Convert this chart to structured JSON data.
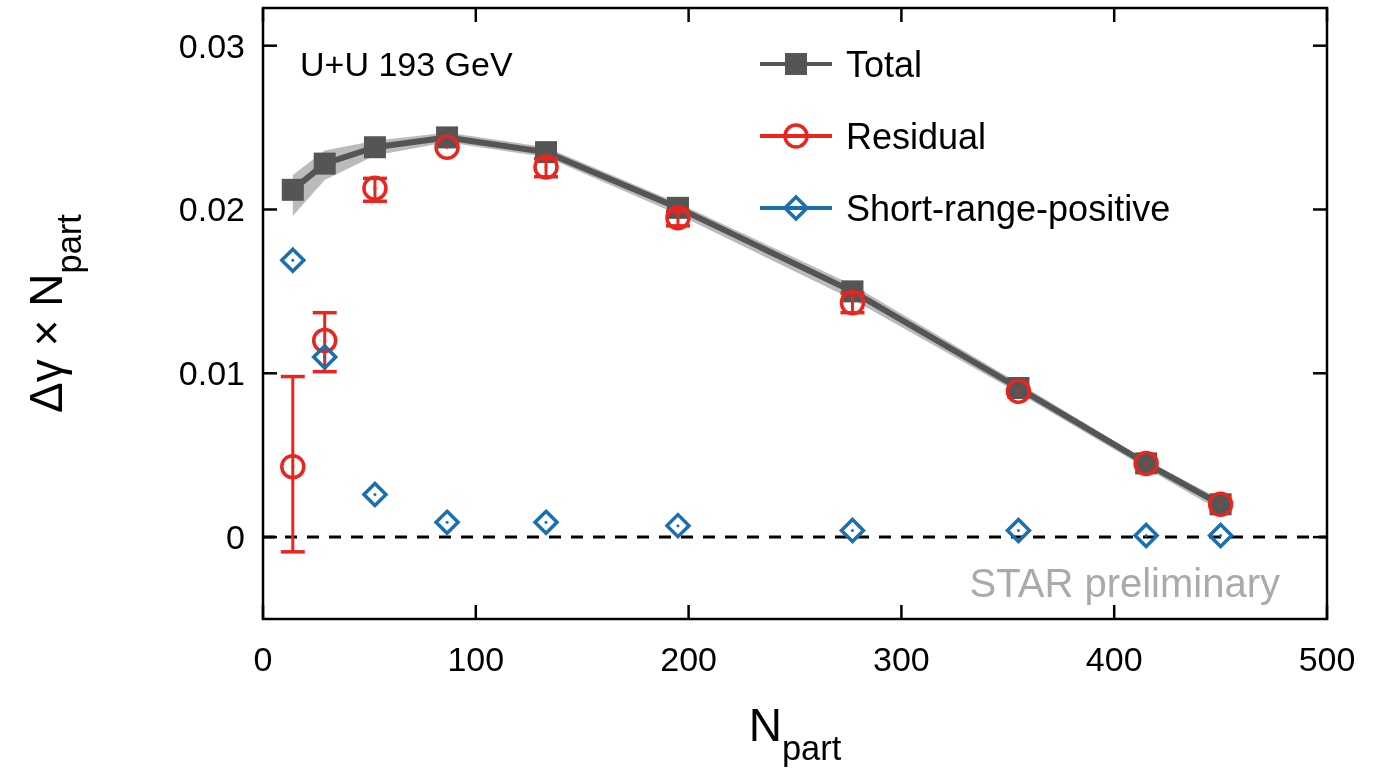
{
  "chart_data": {
    "type": "line",
    "x": [
      14,
      29,
      52.6,
      86.5,
      133,
      195,
      277,
      355,
      415,
      450
    ],
    "series": [
      {
        "name": "Total",
        "color": "#555555",
        "marker": "square",
        "values": [
          0.0212,
          0.0228,
          0.0238,
          0.0244,
          0.0235,
          0.0201,
          0.015,
          0.0091,
          0.0045,
          0.002
        ],
        "lower": [
          0.0196,
          0.0218,
          0.0233,
          0.0241,
          0.0232,
          0.0197,
          0.0145,
          0.0088,
          0.0042,
          0.0016
        ],
        "upper": [
          0.0221,
          0.0236,
          0.0242,
          0.0247,
          0.0238,
          0.0204,
          0.0154,
          0.0094,
          0.0047,
          0.0023
        ]
      },
      {
        "name": "Residual",
        "type": "scatter",
        "color": "#e8251f",
        "marker": "circle",
        "values": [
          0.0043,
          0.012,
          0.0213,
          0.0238,
          0.0226,
          0.0195,
          0.0143,
          0.0089,
          0.0045,
          0.002
        ],
        "errors": [
          [
            -0.0009,
            0.0098
          ],
          [
            0.0101,
            0.0137
          ],
          [
            0.0205,
            0.0219
          ],
          null,
          [
            0.022,
            0.0231
          ],
          [
            0.019,
            0.0199
          ],
          [
            0.0137,
            0.0149
          ],
          null,
          null,
          null
        ]
      },
      {
        "name": "Short-range-positive",
        "type": "scatter",
        "color": "#1a6fb0",
        "marker": "diamond",
        "values": [
          0.0169,
          0.011,
          0.0026,
          0.0009,
          0.0009,
          0.0007,
          0.0004,
          0.0004,
          0.0001,
          0.0001
        ]
      }
    ],
    "xlim": [
      0,
      500
    ],
    "xticks": [
      0,
      100,
      200,
      300,
      400,
      500
    ],
    "ylim": [
      -0.005,
      0.0323
    ],
    "yticks": [
      0,
      0.01,
      0.02,
      0.03
    ],
    "xlabel": "N$_{part}$",
    "ylabel": "Δγ × N$_{part}$",
    "ref_lines": [
      {
        "axis": "y",
        "value": 0,
        "color": "#000000",
        "line_style": "dashed"
      }
    ],
    "annotations": [
      "U+U 193 GeV",
      "STAR preliminary"
    ],
    "legend": "top right"
  }
}
